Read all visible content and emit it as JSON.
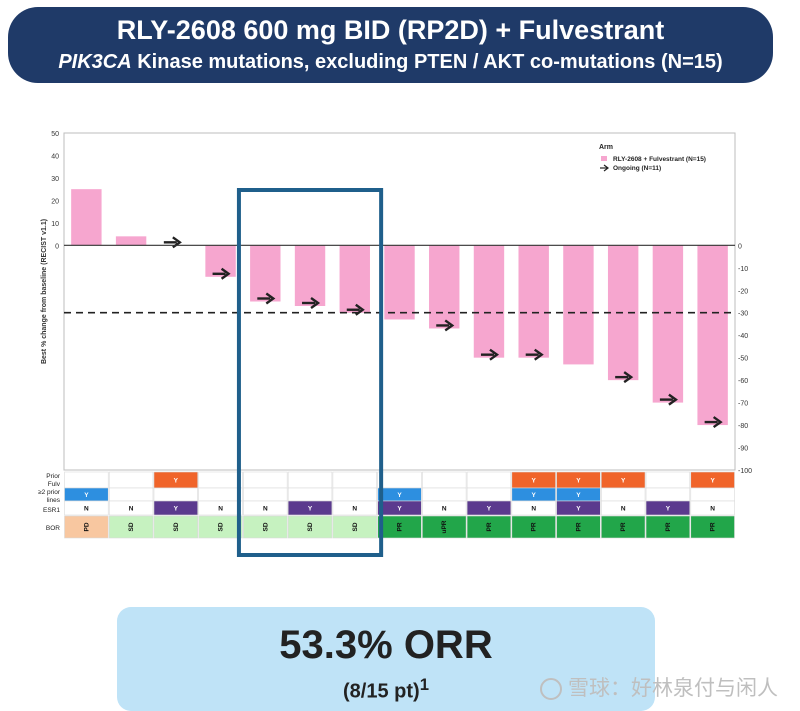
{
  "header": {
    "title": "RLY-2608 600 mg BID (RP2D) + Fulvestrant",
    "subtitle_italic": "PIK3CA",
    "subtitle_rest": " Kinase mutations, excluding PTEN / AKT co-mutations (N=15)"
  },
  "chart_data": {
    "type": "bar",
    "ylabel": "Best % change from baseline (RECIST v1.1)",
    "ylim": [
      -100,
      50
    ],
    "yticks_left": [
      50,
      40,
      30,
      20,
      10,
      0
    ],
    "yticks_right": [
      0,
      -10,
      -20,
      -30,
      -40,
      -50,
      -60,
      -70,
      -80,
      -90,
      -100
    ],
    "threshold": -30,
    "legend": {
      "title": "Arm",
      "position": "top-right",
      "entries": [
        "RLY-2608 + Fulvestrant (N=15)",
        "Ongoing (N=11)"
      ]
    },
    "series": [
      {
        "name": "RLY-2608 + Fulvestrant (N=15)",
        "color": "#f6a6cf",
        "values": [
          25,
          4,
          0,
          -14,
          -25,
          -27,
          -30,
          -33,
          -37,
          -50,
          -50,
          -53,
          -60,
          -70,
          -80
        ],
        "ongoing": [
          false,
          false,
          true,
          true,
          true,
          true,
          true,
          false,
          true,
          true,
          true,
          false,
          true,
          true,
          true
        ]
      }
    ],
    "table": {
      "row_labels": [
        "Prior Fulv",
        "≥2 prior lines",
        "ESR1",
        "BOR"
      ],
      "prior_fulv": [
        "",
        "",
        "Y",
        "",
        "",
        "",
        "",
        "",
        "",
        "",
        "Y",
        "Y",
        "Y",
        "",
        "Y"
      ],
      "prior_lines": [
        "Y",
        "",
        "",
        "",
        "",
        "",
        "",
        "Y",
        "",
        "",
        "Y",
        "Y",
        "",
        "",
        ""
      ],
      "esr1": [
        "N",
        "N",
        "Y",
        "N",
        "N",
        "Y",
        "N",
        "Y",
        "N",
        "Y",
        "N",
        "Y",
        "N",
        "Y",
        "N"
      ],
      "bor": [
        "PD",
        "SD",
        "SD",
        "SD",
        "SD",
        "SD",
        "SD",
        "PR",
        "uPR",
        "PR",
        "PR",
        "PR",
        "PR",
        "PR",
        "PR"
      ]
    },
    "highlight_range": [
      4,
      6
    ]
  },
  "colors": {
    "bar": "#f6a6cf",
    "y_fulv": "#f0642a",
    "y_lines": "#2d8fe0",
    "y_esr1": "#5b3a8e",
    "pd": "#f8c7a0",
    "sd": "#c6f2c0",
    "pr": "#22a64a",
    "highlight": "#1f5f8b"
  },
  "orr": {
    "value": "53.3% ORR",
    "detail": "(8/15 pt)",
    "footnote": "1"
  },
  "watermark": "雪球：好林泉付与闲人"
}
